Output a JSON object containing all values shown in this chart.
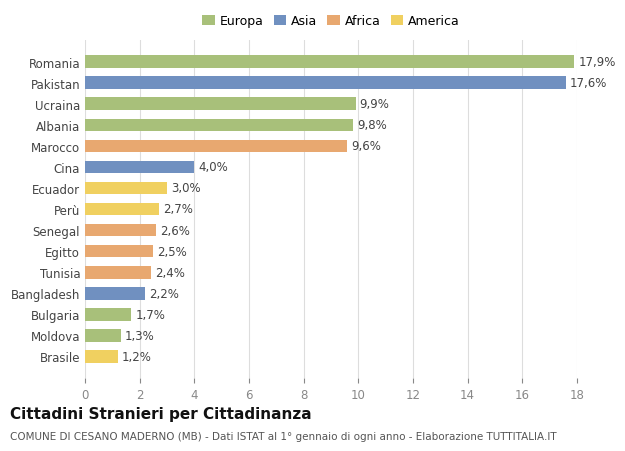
{
  "categories": [
    "Romania",
    "Pakistan",
    "Ucraina",
    "Albania",
    "Marocco",
    "Cina",
    "Ecuador",
    "Perù",
    "Senegal",
    "Egitto",
    "Tunisia",
    "Bangladesh",
    "Bulgaria",
    "Moldova",
    "Brasile"
  ],
  "values": [
    17.9,
    17.6,
    9.9,
    9.8,
    9.6,
    4.0,
    3.0,
    2.7,
    2.6,
    2.5,
    2.4,
    2.2,
    1.7,
    1.3,
    1.2
  ],
  "labels": [
    "17,9%",
    "17,6%",
    "9,9%",
    "9,8%",
    "9,6%",
    "4,0%",
    "3,0%",
    "2,7%",
    "2,6%",
    "2,5%",
    "2,4%",
    "2,2%",
    "1,7%",
    "1,3%",
    "1,2%"
  ],
  "colors": [
    "#a8c07a",
    "#7090c0",
    "#a8c07a",
    "#a8c07a",
    "#e8a870",
    "#7090c0",
    "#f0d060",
    "#f0d060",
    "#e8a870",
    "#e8a870",
    "#e8a870",
    "#7090c0",
    "#a8c07a",
    "#a8c07a",
    "#f0d060"
  ],
  "continent": [
    "Europa",
    "Asia",
    "Europa",
    "Europa",
    "Africa",
    "Asia",
    "America",
    "America",
    "Africa",
    "Africa",
    "Africa",
    "Asia",
    "Europa",
    "Europa",
    "America"
  ],
  "legend_labels": [
    "Europa",
    "Asia",
    "Africa",
    "America"
  ],
  "legend_colors": [
    "#a8c07a",
    "#7090c0",
    "#e8a870",
    "#f0d060"
  ],
  "title": "Cittadini Stranieri per Cittadinanza",
  "subtitle": "COMUNE DI CESANO MADERNO (MB) - Dati ISTAT al 1° gennaio di ogni anno - Elaborazione TUTTITALIA.IT",
  "xlim": [
    0,
    18
  ],
  "xticks": [
    0,
    2,
    4,
    6,
    8,
    10,
    12,
    14,
    16,
    18
  ],
  "bg_color": "#ffffff",
  "grid_color": "#dddddd",
  "bar_height": 0.6,
  "label_fontsize": 8.5,
  "ytick_fontsize": 8.5,
  "xtick_fontsize": 8.5,
  "title_fontsize": 11,
  "subtitle_fontsize": 7.5
}
